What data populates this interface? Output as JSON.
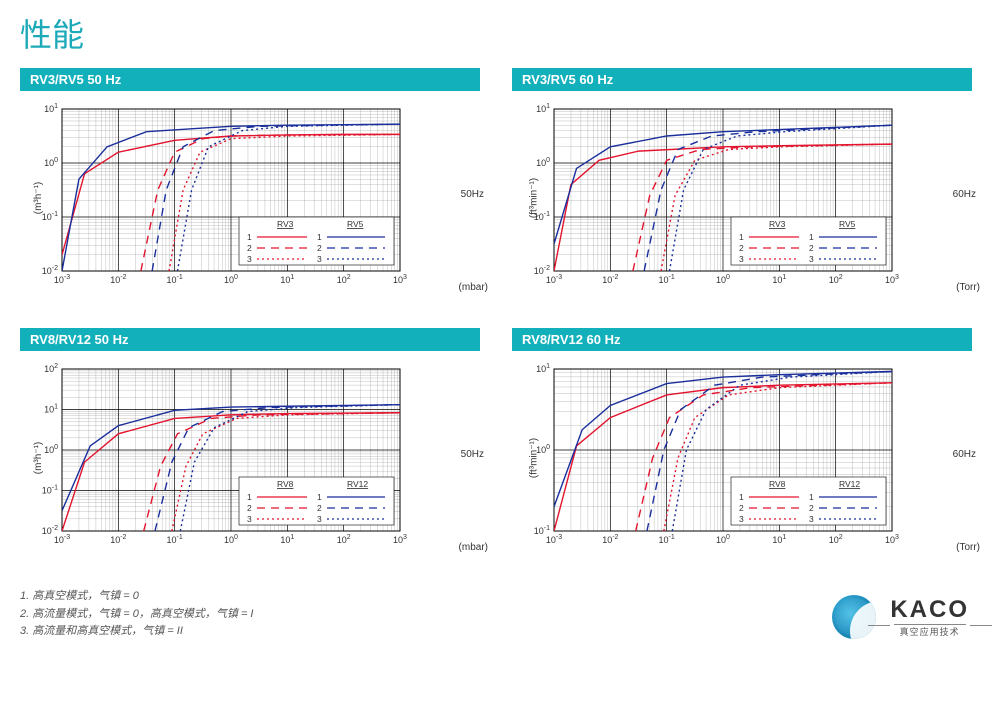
{
  "page_title": "性能",
  "colors": {
    "header_bg": "#12b0bb",
    "header_fg": "#ffffff",
    "grid": "#000000",
    "series_a": "#e3142d",
    "series_b": "#1a2f9c",
    "bg": "#ffffff"
  },
  "footnotes": [
    "1. 高真空模式，气镇 = 0",
    "2. 高流量模式，气镇 = 0，高真空模式，气镇 = I",
    "3. 高流量和高真空模式，气镇 = II"
  ],
  "brand": {
    "name": "KACO",
    "subtitle": "真空应用技术"
  },
  "line_styles": {
    "1": "solid",
    "2": "8,6",
    "3": "2,3"
  },
  "charts": [
    {
      "id": "c1",
      "title": "RV3/RV5 50 Hz",
      "ylabel": "(m³h⁻¹)",
      "right_label": "50Hz",
      "xunit": "(mbar)",
      "x_exp": [
        -3,
        -2,
        -1,
        0,
        1,
        2,
        3
      ],
      "y_exp": [
        -2,
        -1,
        0,
        1
      ],
      "legend_cols": [
        "RV3",
        "RV5"
      ],
      "series": [
        {
          "col": "a",
          "s": "1",
          "pts": [
            [
              -3,
              -1.7
            ],
            [
              -2.6,
              -0.2
            ],
            [
              -2,
              0.2
            ],
            [
              -1,
              0.42
            ],
            [
              0,
              0.5
            ],
            [
              1,
              0.52
            ],
            [
              2,
              0.53
            ],
            [
              3,
              0.53
            ]
          ]
        },
        {
          "col": "a",
          "s": "2",
          "pts": [
            [
              -1.6,
              -2
            ],
            [
              -1.3,
              -0.5
            ],
            [
              -1,
              0.2
            ],
            [
              -0.5,
              0.45
            ],
            [
              0,
              0.5
            ],
            [
              1,
              0.52
            ],
            [
              3,
              0.53
            ]
          ]
        },
        {
          "col": "a",
          "s": "3",
          "pts": [
            [
              -1.1,
              -2
            ],
            [
              -0.85,
              -0.5
            ],
            [
              -0.55,
              0.2
            ],
            [
              0,
              0.45
            ],
            [
              1,
              0.5
            ],
            [
              3,
              0.53
            ]
          ]
        },
        {
          "col": "b",
          "s": "1",
          "pts": [
            [
              -3,
              -2
            ],
            [
              -2.7,
              -0.3
            ],
            [
              -2.2,
              0.3
            ],
            [
              -1.5,
              0.58
            ],
            [
              0,
              0.68
            ],
            [
              1,
              0.7
            ],
            [
              3,
              0.72
            ]
          ]
        },
        {
          "col": "b",
          "s": "2",
          "pts": [
            [
              -1.4,
              -2
            ],
            [
              -1.15,
              -0.5
            ],
            [
              -0.85,
              0.3
            ],
            [
              -0.3,
              0.6
            ],
            [
              0.5,
              0.68
            ],
            [
              3,
              0.72
            ]
          ]
        },
        {
          "col": "b",
          "s": "3",
          "pts": [
            [
              -0.95,
              -2
            ],
            [
              -0.7,
              -0.5
            ],
            [
              -0.4,
              0.3
            ],
            [
              0.2,
              0.6
            ],
            [
              1,
              0.68
            ],
            [
              3,
              0.72
            ]
          ]
        }
      ]
    },
    {
      "id": "c2",
      "title": "RV3/RV5 60 Hz",
      "ylabel": "(ft³min⁻¹)",
      "right_label": "60Hz",
      "xunit": "(Torr)",
      "x_exp": [
        -3,
        -2,
        -1,
        0,
        1,
        2,
        3
      ],
      "y_exp": [
        -2,
        -1,
        0,
        1
      ],
      "legend_cols": [
        "RV3",
        "RV5"
      ],
      "series": [
        {
          "col": "a",
          "s": "1",
          "pts": [
            [
              -3,
              -2
            ],
            [
              -2.7,
              -0.4
            ],
            [
              -2.2,
              0.05
            ],
            [
              -1.5,
              0.22
            ],
            [
              0,
              0.3
            ],
            [
              1,
              0.32
            ],
            [
              3,
              0.35
            ]
          ]
        },
        {
          "col": "a",
          "s": "2",
          "pts": [
            [
              -1.6,
              -2
            ],
            [
              -1.3,
              -0.6
            ],
            [
              -1,
              0.05
            ],
            [
              -0.4,
              0.25
            ],
            [
              0.5,
              0.3
            ],
            [
              3,
              0.35
            ]
          ]
        },
        {
          "col": "a",
          "s": "3",
          "pts": [
            [
              -1.1,
              -2
            ],
            [
              -0.85,
              -0.6
            ],
            [
              -0.5,
              0.05
            ],
            [
              0.1,
              0.25
            ],
            [
              1,
              0.3
            ],
            [
              3,
              0.35
            ]
          ]
        },
        {
          "col": "b",
          "s": "1",
          "pts": [
            [
              -3,
              -1.5
            ],
            [
              -2.6,
              -0.1
            ],
            [
              -2,
              0.3
            ],
            [
              -1,
              0.5
            ],
            [
              0,
              0.58
            ],
            [
              1,
              0.62
            ],
            [
              3,
              0.7
            ]
          ]
        },
        {
          "col": "b",
          "s": "2",
          "pts": [
            [
              -1.4,
              -2
            ],
            [
              -1.1,
              -0.5
            ],
            [
              -0.8,
              0.25
            ],
            [
              -0.2,
              0.5
            ],
            [
              0.6,
              0.58
            ],
            [
              3,
              0.7
            ]
          ]
        },
        {
          "col": "b",
          "s": "3",
          "pts": [
            [
              -0.95,
              -2
            ],
            [
              -0.7,
              -0.5
            ],
            [
              -0.35,
              0.25
            ],
            [
              0.25,
              0.5
            ],
            [
              1.1,
              0.58
            ],
            [
              3,
              0.7
            ]
          ]
        }
      ]
    },
    {
      "id": "c3",
      "title": "RV8/RV12 50 Hz",
      "ylabel": "(m³h⁻¹)",
      "right_label": "50Hz",
      "xunit": "(mbar)",
      "x_exp": [
        -3,
        -2,
        -1,
        0,
        1,
        2,
        3
      ],
      "y_exp": [
        -2,
        -1,
        0,
        1,
        2
      ],
      "legend_cols": [
        "RV8",
        "RV12"
      ],
      "series": [
        {
          "col": "a",
          "s": "1",
          "pts": [
            [
              -3,
              -2
            ],
            [
              -2.6,
              -0.3
            ],
            [
              -2,
              0.4
            ],
            [
              -1,
              0.78
            ],
            [
              0,
              0.87
            ],
            [
              1,
              0.9
            ],
            [
              3,
              0.92
            ]
          ]
        },
        {
          "col": "a",
          "s": "2",
          "pts": [
            [
              -1.55,
              -2
            ],
            [
              -1.25,
              -0.4
            ],
            [
              -0.95,
              0.4
            ],
            [
              -0.35,
              0.78
            ],
            [
              0.5,
              0.87
            ],
            [
              3,
              0.92
            ]
          ]
        },
        {
          "col": "a",
          "s": "3",
          "pts": [
            [
              -1.05,
              -2
            ],
            [
              -0.8,
              -0.4
            ],
            [
              -0.5,
              0.4
            ],
            [
              0.1,
              0.78
            ],
            [
              1,
              0.87
            ],
            [
              3,
              0.92
            ]
          ]
        },
        {
          "col": "b",
          "s": "1",
          "pts": [
            [
              -3,
              -1.5
            ],
            [
              -2.5,
              0.1
            ],
            [
              -2,
              0.6
            ],
            [
              -1,
              0.98
            ],
            [
              0,
              1.06
            ],
            [
              1,
              1.08
            ],
            [
              3,
              1.12
            ]
          ]
        },
        {
          "col": "b",
          "s": "2",
          "pts": [
            [
              -1.35,
              -2
            ],
            [
              -1.05,
              -0.3
            ],
            [
              -0.75,
              0.55
            ],
            [
              -0.15,
              0.95
            ],
            [
              0.7,
              1.05
            ],
            [
              3,
              1.12
            ]
          ]
        },
        {
          "col": "b",
          "s": "3",
          "pts": [
            [
              -0.9,
              -2
            ],
            [
              -0.65,
              -0.3
            ],
            [
              -0.3,
              0.55
            ],
            [
              0.3,
              0.95
            ],
            [
              1.2,
              1.05
            ],
            [
              3,
              1.12
            ]
          ]
        }
      ]
    },
    {
      "id": "c4",
      "title": "RV8/RV12 60 Hz",
      "ylabel": "(ft³min⁻¹)",
      "right_label": "60Hz",
      "xunit": "(Torr)",
      "x_exp": [
        -3,
        -2,
        -1,
        0,
        1,
        2,
        3
      ],
      "y_exp": [
        -1,
        0,
        1
      ],
      "legend_cols": [
        "RV8",
        "RV12"
      ],
      "series": [
        {
          "col": "a",
          "s": "1",
          "pts": [
            [
              -3,
              -1
            ],
            [
              -2.6,
              0.05
            ],
            [
              -2,
              0.4
            ],
            [
              -1,
              0.68
            ],
            [
              0,
              0.77
            ],
            [
              1,
              0.8
            ],
            [
              3,
              0.83
            ]
          ]
        },
        {
          "col": "a",
          "s": "2",
          "pts": [
            [
              -1.55,
              -1
            ],
            [
              -1.25,
              -0.1
            ],
            [
              -0.95,
              0.4
            ],
            [
              -0.35,
              0.68
            ],
            [
              0.5,
              0.77
            ],
            [
              3,
              0.83
            ]
          ]
        },
        {
          "col": "a",
          "s": "3",
          "pts": [
            [
              -1.05,
              -1
            ],
            [
              -0.8,
              -0.1
            ],
            [
              -0.5,
              0.4
            ],
            [
              0.1,
              0.68
            ],
            [
              1,
              0.77
            ],
            [
              3,
              0.83
            ]
          ]
        },
        {
          "col": "b",
          "s": "1",
          "pts": [
            [
              -3,
              -0.7
            ],
            [
              -2.5,
              0.25
            ],
            [
              -2,
              0.55
            ],
            [
              -1,
              0.82
            ],
            [
              0,
              0.9
            ],
            [
              1,
              0.93
            ],
            [
              3,
              0.97
            ]
          ]
        },
        {
          "col": "b",
          "s": "2",
          "pts": [
            [
              -1.35,
              -1
            ],
            [
              -1.05,
              0
            ],
            [
              -0.75,
              0.5
            ],
            [
              -0.15,
              0.8
            ],
            [
              0.7,
              0.9
            ],
            [
              3,
              0.97
            ]
          ]
        },
        {
          "col": "b",
          "s": "3",
          "pts": [
            [
              -0.9,
              -1
            ],
            [
              -0.65,
              0
            ],
            [
              -0.3,
              0.5
            ],
            [
              0.3,
              0.8
            ],
            [
              1.2,
              0.9
            ],
            [
              3,
              0.97
            ]
          ]
        }
      ]
    }
  ]
}
